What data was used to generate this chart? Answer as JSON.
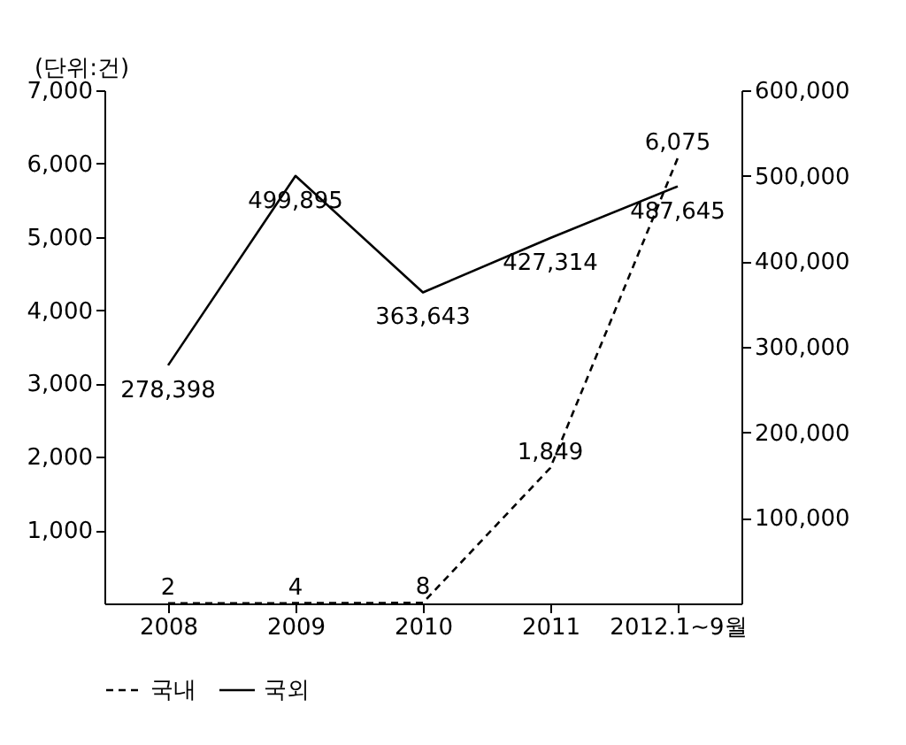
{
  "chart_data": {
    "type": "line",
    "ylabel": "(단위:건)",
    "categories": [
      "2008",
      "2009",
      "2010",
      "2011",
      "2012.1~9월"
    ],
    "series": [
      {
        "name": "국내",
        "color": "#000000",
        "line_style": "dashed",
        "axis": "y",
        "values": [
          2,
          4,
          8,
          1849,
          6075
        ],
        "value_labels": [
          "2",
          "4",
          "8",
          "1,849",
          "6,075"
        ]
      },
      {
        "name": "국외",
        "color": "#000000",
        "line_style": "solid",
        "axis": "y2",
        "values": [
          278398,
          499895,
          363643,
          427314,
          487645
        ],
        "value_labels": [
          "278,398",
          "499,895",
          "363,643",
          "427,314",
          "487,645"
        ]
      }
    ],
    "ylim": [
      0,
      7000
    ],
    "yticks": [
      {
        "value": 1000,
        "label": "1,000"
      },
      {
        "value": 2000,
        "label": "2,000"
      },
      {
        "value": 3000,
        "label": "3,000"
      },
      {
        "value": 4000,
        "label": "4,000"
      },
      {
        "value": 5000,
        "label": "5,000"
      },
      {
        "value": 6000,
        "label": "6,000"
      },
      {
        "value": 7000,
        "label": "7,000"
      }
    ],
    "y2lim": [
      0,
      600000
    ],
    "y2ticks": [
      {
        "value": 100000,
        "label": "100,000"
      },
      {
        "value": 200000,
        "label": "200,000"
      },
      {
        "value": 300000,
        "label": "300,000"
      },
      {
        "value": 400000,
        "label": "400,000"
      },
      {
        "value": 500000,
        "label": "500,000"
      },
      {
        "value": 600000,
        "label": "600,000"
      }
    ],
    "grid": false,
    "legend": "bottom"
  }
}
